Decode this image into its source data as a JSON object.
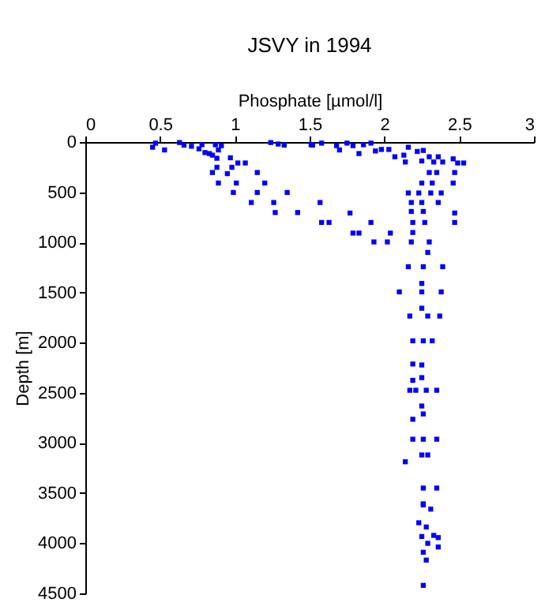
{
  "chart_data": {
    "type": "scatter",
    "title": "JSVY in 1994",
    "xlabel": "Phosphate [µmol/l]",
    "ylabel": "Depth [m]",
    "xlim": [
      0,
      3
    ],
    "xticks": [
      0,
      0.5,
      1,
      1.5,
      2,
      2.5,
      3
    ],
    "ylim": [
      4500,
      0
    ],
    "yticks": [
      0,
      500,
      1000,
      1500,
      2000,
      2500,
      3000,
      3500,
      4000,
      4500
    ],
    "grid": false,
    "marker": "square",
    "series": [
      {
        "color": "#0000ff",
        "x": [
          0.45,
          0.47,
          0.53,
          0.63,
          0.66,
          0.71,
          0.76,
          0.78,
          0.8,
          0.83,
          0.85,
          0.87,
          0.89,
          0.91,
          0.88,
          0.97,
          0.88,
          0.98,
          1.02,
          1.07,
          0.85,
          0.95,
          1.15,
          0.89,
          1.01,
          1.2,
          0.99,
          1.15,
          1.35,
          1.11,
          1.26,
          1.27,
          1.42,
          1.24,
          1.29,
          1.33,
          1.51,
          1.52,
          1.58,
          1.68,
          1.7,
          1.75,
          1.79,
          1.83,
          1.86,
          1.91,
          1.94,
          1.98,
          2.03,
          2.07,
          2.13,
          2.14,
          2.16,
          2.22,
          2.26,
          2.25,
          2.3,
          2.33,
          2.36,
          2.39,
          2.3,
          2.35,
          2.46,
          2.49,
          2.53,
          2.47,
          2.25,
          2.32,
          2.46,
          2.16,
          2.23,
          2.31,
          2.38,
          1.57,
          2.18,
          2.25,
          2.36,
          1.77,
          2.18,
          2.26,
          2.47,
          1.58,
          1.63,
          1.91,
          2.19,
          2.27,
          2.47,
          1.79,
          1.83,
          2.04,
          2.19,
          1.93,
          2.02,
          2.18,
          2.3,
          2.29,
          2.16,
          2.26,
          2.39,
          2.25,
          2.1,
          2.25,
          2.38,
          2.25,
          2.17,
          2.29,
          2.37,
          2.19,
          2.26,
          2.32,
          2.19,
          2.25,
          2.19,
          2.25,
          2.17,
          2.21,
          2.28,
          2.35,
          2.25,
          2.26,
          2.19,
          2.19,
          2.26,
          2.35,
          2.25,
          2.29,
          2.14,
          2.26,
          2.35,
          2.26,
          2.26,
          2.31,
          2.23,
          2.28,
          2.25,
          2.33,
          2.36,
          2.29,
          2.36,
          2.26,
          2.28,
          2.26
        ],
        "values": [
          52,
          11,
          79,
          5,
          31,
          42,
          68,
          27,
          105,
          115,
          131,
          27,
          79,
          36,
          162,
          157,
          252,
          252,
          209,
          209,
          304,
          315,
          304,
          409,
          409,
          409,
          503,
          503,
          503,
          603,
          603,
          703,
          703,
          5,
          20,
          31,
          27,
          31,
          11,
          36,
          79,
          11,
          36,
          115,
          27,
          11,
          89,
          74,
          74,
          147,
          131,
          199,
          52,
          94,
          84,
          189,
          147,
          199,
          147,
          199,
          304,
          304,
          168,
          209,
          209,
          304,
          409,
          409,
          409,
          508,
          508,
          508,
          508,
          603,
          603,
          603,
          603,
          708,
          692,
          692,
          708,
          802,
          802,
          802,
          802,
          802,
          802,
          908,
          908,
          908,
          902,
          996,
          996,
          996,
          996,
          1101,
          1243,
          1243,
          1243,
          1410,
          1494,
          1494,
          1494,
          1657,
          1735,
          1735,
          1735,
          1982,
          1982,
          1982,
          2213,
          2223,
          2376,
          2349,
          2475,
          2475,
          2475,
          2475,
          2632,
          2711,
          2764,
          2963,
          2963,
          2963,
          3120,
          3120,
          3188,
          3450,
          3450,
          3607,
          3618,
          3660,
          3796,
          3838,
          3933,
          3922,
          3944,
          4001,
          4038,
          4090,
          4168,
          4420
        ]
      }
    ]
  }
}
